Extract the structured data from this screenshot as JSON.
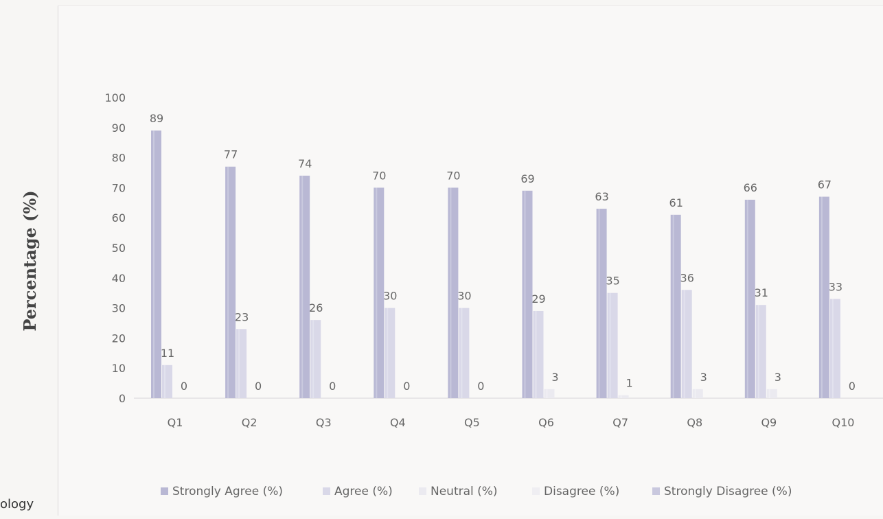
{
  "side_text": "ology",
  "chart_data": {
    "type": "bar",
    "title": "",
    "xlabel": "",
    "ylabel": "Percentage (%)",
    "ylim": [
      0,
      100
    ],
    "yticks": [
      0,
      10,
      20,
      30,
      40,
      50,
      60,
      70,
      80,
      90,
      100
    ],
    "categories": [
      "Q1",
      "Q2",
      "Q3",
      "Q4",
      "Q5",
      "Q6",
      "Q7",
      "Q8",
      "Q9",
      "Q10"
    ],
    "series": [
      {
        "name": "Strongly Agree (%)",
        "values": [
          89,
          77,
          74,
          70,
          70,
          69,
          63,
          61,
          66,
          67
        ],
        "color": "#b9b8d4",
        "show_labels": true
      },
      {
        "name": "Agree (%)",
        "values": [
          11,
          23,
          26,
          30,
          30,
          29,
          35,
          36,
          31,
          33
        ],
        "color": "#d9d8e8",
        "show_labels": true
      },
      {
        "name": "Neutral (%)",
        "values": [
          0,
          0,
          0,
          0,
          0,
          3,
          1,
          3,
          3,
          0
        ],
        "color": "#ebeaf0",
        "show_labels": true
      },
      {
        "name": "Disagree (%)",
        "values": [
          0,
          0,
          0,
          0,
          0,
          0,
          0,
          0,
          0,
          0
        ],
        "color": "#efeef2",
        "show_labels": false
      },
      {
        "name": "Strongly Disagree (%)",
        "values": [
          0,
          0,
          0,
          0,
          0,
          0,
          0,
          0,
          0,
          0
        ],
        "color": "#c9c8de",
        "show_labels": false
      }
    ],
    "grid": false,
    "legend_position": "bottom"
  }
}
